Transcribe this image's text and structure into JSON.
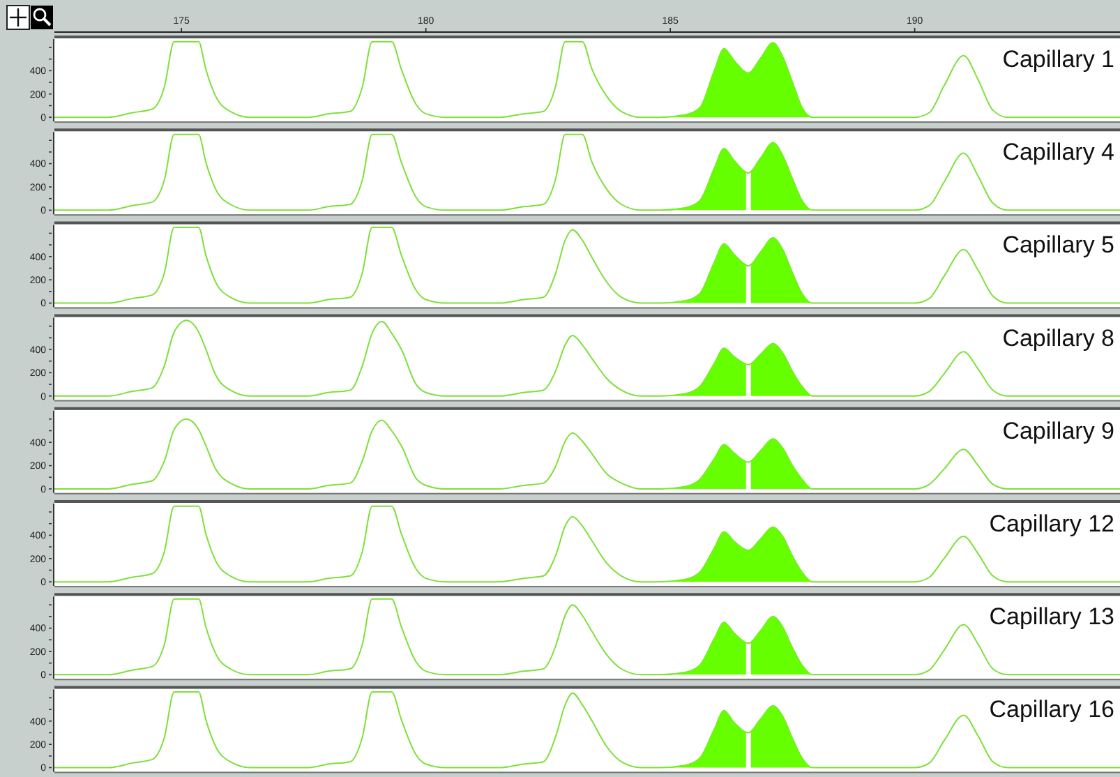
{
  "chart_data": [
    {
      "type": "line",
      "title": "Capillary 1",
      "xlim": [
        172.4,
        194.2
      ],
      "xticks": [
        175,
        180,
        185,
        190
      ],
      "ylim": [
        -35,
        660
      ],
      "yticks": [
        0,
        {
          "value": 100,
          "label": null
        },
        200,
        {
          "value": 300,
          "label": null
        },
        400,
        {
          "value": 500,
          "label": null
        },
        {
          "value": 600,
          "label": null
        }
      ],
      "x": [
        172.4,
        173.5,
        174.0,
        174.4,
        174.65,
        174.85,
        175.35,
        175.5,
        175.7,
        176.0,
        176.4,
        177.6,
        178.0,
        178.45,
        178.7,
        178.9,
        179.3,
        179.5,
        179.8,
        180.0,
        180.4,
        181.5,
        182.0,
        182.4,
        182.65,
        182.85,
        183.2,
        183.4,
        183.7,
        184.0,
        184.4,
        184.8,
        185.3,
        185.6,
        185.9,
        186.1,
        186.3,
        186.6,
        186.85,
        187.1,
        187.3,
        187.5,
        187.7,
        187.9,
        188.3,
        190.0,
        190.3,
        190.6,
        191.0,
        191.3,
        191.6,
        191.9,
        192.5,
        194.2
      ],
      "series": [
        {
          "type": "line",
          "color": "#7ee03a",
          "values": [
            0,
            0,
            40,
            70,
            260,
            650,
            650,
            410,
            180,
            50,
            0,
            0,
            30,
            50,
            260,
            650,
            650,
            410,
            110,
            30,
            0,
            0,
            30,
            50,
            260,
            650,
            650,
            410,
            180,
            50,
            0,
            0,
            20,
            80,
            400,
            590,
            490,
            380,
            510,
            640,
            520,
            300,
            80,
            0,
            0,
            0,
            40,
            270,
            530,
            320,
            60,
            0,
            0,
            0
          ]
        },
        {
          "type": "area",
          "color": "#66ff00",
          "x": [
            184.8,
            185.3,
            185.6,
            185.9,
            186.1,
            186.3,
            186.6,
            186.85,
            187.1,
            187.3,
            187.5,
            187.7,
            187.9
          ],
          "values": [
            0,
            20,
            80,
            400,
            590,
            490,
            380,
            510,
            640,
            520,
            300,
            80,
            0
          ]
        }
      ]
    },
    {
      "type": "line",
      "title": "Capillary 4",
      "xlim": [
        172.4,
        194.2
      ],
      "ylim": [
        -35,
        660
      ],
      "yticks": [
        0,
        {
          "value": 100,
          "label": null
        },
        200,
        {
          "value": 300,
          "label": null
        },
        400,
        {
          "value": 500,
          "label": null
        },
        {
          "value": 600,
          "label": null
        }
      ],
      "tick_labels": "y",
      "x": [
        172.4,
        173.5,
        174.0,
        174.4,
        174.65,
        174.85,
        175.35,
        175.5,
        175.7,
        176.0,
        176.4,
        177.6,
        178.0,
        178.45,
        178.7,
        178.9,
        179.3,
        179.5,
        179.8,
        180.0,
        180.4,
        181.5,
        182.0,
        182.4,
        182.65,
        182.85,
        183.2,
        183.4,
        183.7,
        184.0,
        184.4,
        184.8,
        185.3,
        185.6,
        185.9,
        186.1,
        186.3,
        186.6,
        186.85,
        187.1,
        187.3,
        187.5,
        187.7,
        187.9,
        188.3,
        190.0,
        190.3,
        190.6,
        191.0,
        191.3,
        191.6,
        191.9,
        192.5,
        194.2
      ],
      "series": [
        {
          "type": "line",
          "color": "#7ee03a",
          "values": [
            0,
            0,
            40,
            70,
            260,
            650,
            650,
            410,
            180,
            50,
            0,
            0,
            30,
            50,
            260,
            650,
            650,
            410,
            110,
            30,
            0,
            0,
            30,
            50,
            260,
            650,
            650,
            410,
            180,
            50,
            0,
            0,
            20,
            80,
            360,
            530,
            430,
            320,
            450,
            580,
            470,
            270,
            80,
            0,
            0,
            0,
            40,
            240,
            490,
            290,
            60,
            0,
            0,
            0
          ]
        },
        {
          "type": "area",
          "color": "#66ff00",
          "x": [
            184.8,
            185.3,
            185.6,
            185.9,
            186.1,
            186.3,
            186.55
          ],
          "values": [
            0,
            20,
            80,
            360,
            530,
            430,
            320
          ]
        },
        {
          "type": "area",
          "color": "#66ff00",
          "x": [
            186.65,
            186.85,
            187.1,
            187.3,
            187.5,
            187.7,
            187.9
          ],
          "values": [
            320,
            450,
            580,
            470,
            270,
            80,
            0
          ]
        }
      ]
    },
    {
      "type": "line",
      "title": "Capillary 5",
      "xlim": [
        172.4,
        194.2
      ],
      "ylim": [
        -35,
        660
      ],
      "yticks": [
        0,
        {
          "value": 100,
          "label": null
        },
        200,
        {
          "value": 300,
          "label": null
        },
        400,
        {
          "value": 500,
          "label": null
        },
        {
          "value": 600,
          "label": null
        }
      ],
      "tick_labels": "y",
      "x": [
        172.4,
        173.5,
        174.0,
        174.4,
        174.65,
        174.85,
        175.35,
        175.5,
        175.7,
        176.0,
        176.4,
        177.6,
        178.0,
        178.45,
        178.7,
        178.9,
        179.3,
        179.5,
        179.8,
        180.0,
        180.4,
        181.5,
        182.0,
        182.4,
        182.65,
        182.85,
        183.0,
        183.2,
        183.4,
        183.7,
        184.0,
        184.4,
        184.8,
        185.3,
        185.6,
        185.9,
        186.1,
        186.3,
        186.6,
        186.85,
        187.1,
        187.3,
        187.5,
        187.7,
        187.9,
        188.3,
        190.0,
        190.3,
        190.6,
        191.0,
        191.3,
        191.6,
        191.9,
        192.5,
        194.2
      ],
      "series": [
        {
          "type": "line",
          "color": "#7ee03a",
          "values": [
            0,
            0,
            40,
            70,
            260,
            650,
            650,
            410,
            180,
            50,
            0,
            0,
            30,
            50,
            260,
            650,
            650,
            410,
            110,
            30,
            0,
            0,
            30,
            50,
            250,
            540,
            630,
            540,
            390,
            180,
            50,
            0,
            0,
            20,
            80,
            350,
            510,
            420,
            320,
            440,
            560,
            460,
            260,
            80,
            0,
            0,
            0,
            40,
            230,
            460,
            280,
            60,
            0,
            0,
            0
          ]
        },
        {
          "type": "area",
          "color": "#66ff00",
          "x": [
            184.8,
            185.3,
            185.6,
            185.9,
            186.1,
            186.3,
            186.55
          ],
          "values": [
            0,
            20,
            80,
            350,
            510,
            420,
            320
          ]
        },
        {
          "type": "area",
          "color": "#66ff00",
          "x": [
            186.65,
            186.85,
            187.1,
            187.3,
            187.5,
            187.7,
            187.9
          ],
          "values": [
            320,
            440,
            560,
            460,
            260,
            80,
            0
          ]
        }
      ]
    },
    {
      "type": "line",
      "title": "Capillary 8",
      "xlim": [
        172.4,
        194.2
      ],
      "ylim": [
        -35,
        660
      ],
      "yticks": [
        0,
        {
          "value": 100,
          "label": null
        },
        200,
        {
          "value": 300,
          "label": null
        },
        400,
        {
          "value": 500,
          "label": null
        },
        {
          "value": 600,
          "label": null
        }
      ],
      "tick_labels": "y",
      "x": [
        172.4,
        173.5,
        174.0,
        174.4,
        174.65,
        174.85,
        175.1,
        175.35,
        175.5,
        175.7,
        176.0,
        176.4,
        177.6,
        178.0,
        178.45,
        178.7,
        178.9,
        179.1,
        179.3,
        179.5,
        179.8,
        180.0,
        180.4,
        181.5,
        182.0,
        182.4,
        182.65,
        182.85,
        183.0,
        183.2,
        183.4,
        183.7,
        184.0,
        184.4,
        184.8,
        185.3,
        185.6,
        185.9,
        186.1,
        186.3,
        186.6,
        186.85,
        187.1,
        187.3,
        187.5,
        187.7,
        187.9,
        188.3,
        190.0,
        190.3,
        190.6,
        191.0,
        191.3,
        191.6,
        191.9,
        192.5,
        194.2
      ],
      "series": [
        {
          "type": "line",
          "color": "#7ee03a",
          "values": [
            0,
            0,
            40,
            70,
            260,
            550,
            650,
            550,
            400,
            180,
            50,
            0,
            0,
            30,
            50,
            260,
            540,
            640,
            540,
            400,
            100,
            30,
            0,
            0,
            30,
            50,
            210,
            440,
            520,
            440,
            320,
            150,
            50,
            0,
            0,
            20,
            80,
            280,
            410,
            340,
            270,
            360,
            450,
            370,
            210,
            80,
            0,
            0,
            0,
            40,
            190,
            380,
            230,
            50,
            0,
            0,
            0
          ]
        },
        {
          "type": "area",
          "color": "#66ff00",
          "x": [
            184.8,
            185.3,
            185.6,
            185.9,
            186.1,
            186.3,
            186.55
          ],
          "values": [
            0,
            20,
            80,
            280,
            410,
            340,
            270
          ]
        },
        {
          "type": "area",
          "color": "#66ff00",
          "x": [
            186.65,
            186.85,
            187.1,
            187.3,
            187.5,
            187.7,
            187.9
          ],
          "values": [
            270,
            360,
            450,
            370,
            210,
            80,
            0
          ]
        }
      ]
    },
    {
      "type": "line",
      "title": "Capillary 9",
      "xlim": [
        172.4,
        194.2
      ],
      "ylim": [
        -35,
        660
      ],
      "yticks": [
        0,
        {
          "value": 100,
          "label": null
        },
        200,
        {
          "value": 300,
          "label": null
        },
        400,
        {
          "value": 500,
          "label": null
        },
        {
          "value": 600,
          "label": null
        }
      ],
      "tick_labels": "y",
      "x": [
        172.4,
        173.5,
        174.0,
        174.4,
        174.65,
        174.85,
        175.1,
        175.35,
        175.5,
        175.7,
        176.0,
        176.4,
        177.6,
        178.0,
        178.45,
        178.7,
        178.9,
        179.1,
        179.3,
        179.5,
        179.8,
        180.0,
        180.4,
        181.5,
        182.0,
        182.4,
        182.65,
        182.85,
        183.0,
        183.2,
        183.4,
        183.7,
        184.0,
        184.4,
        184.8,
        185.3,
        185.6,
        185.9,
        186.1,
        186.3,
        186.6,
        186.85,
        187.1,
        187.3,
        187.5,
        187.7,
        187.9,
        188.3,
        190.0,
        190.3,
        190.6,
        191.0,
        191.3,
        191.6,
        191.9,
        192.5,
        194.2
      ],
      "series": [
        {
          "type": "line",
          "color": "#7ee03a",
          "values": [
            0,
            0,
            40,
            70,
            240,
            510,
            600,
            510,
            370,
            170,
            50,
            0,
            0,
            30,
            50,
            240,
            500,
            590,
            500,
            370,
            90,
            30,
            0,
            0,
            30,
            50,
            190,
            410,
            480,
            410,
            300,
            130,
            50,
            0,
            0,
            20,
            80,
            260,
            380,
            310,
            230,
            330,
            430,
            350,
            200,
            80,
            0,
            0,
            0,
            40,
            170,
            340,
            200,
            40,
            0,
            0,
            0
          ]
        },
        {
          "type": "area",
          "color": "#66ff00",
          "x": [
            184.8,
            185.3,
            185.6,
            185.9,
            186.1,
            186.3,
            186.55
          ],
          "values": [
            0,
            20,
            80,
            260,
            380,
            310,
            230
          ]
        },
        {
          "type": "area",
          "color": "#66ff00",
          "x": [
            186.65,
            186.85,
            187.1,
            187.3,
            187.5,
            187.7,
            187.9
          ],
          "values": [
            230,
            330,
            430,
            350,
            200,
            80,
            0
          ]
        }
      ]
    },
    {
      "type": "line",
      "title": "Capillary 12",
      "xlim": [
        172.4,
        194.2
      ],
      "ylim": [
        -35,
        660
      ],
      "yticks": [
        0,
        {
          "value": 100,
          "label": null
        },
        200,
        {
          "value": 300,
          "label": null
        },
        400,
        {
          "value": 500,
          "label": null
        },
        {
          "value": 600,
          "label": null
        }
      ],
      "tick_labels": "y",
      "x": [
        172.4,
        173.5,
        174.0,
        174.4,
        174.65,
        174.85,
        175.35,
        175.5,
        175.7,
        176.0,
        176.4,
        177.6,
        178.0,
        178.45,
        178.7,
        178.9,
        179.3,
        179.5,
        179.8,
        180.0,
        180.4,
        181.5,
        182.0,
        182.4,
        182.65,
        182.85,
        183.0,
        183.2,
        183.4,
        183.7,
        184.0,
        184.4,
        184.8,
        185.3,
        185.6,
        185.9,
        186.1,
        186.3,
        186.6,
        186.85,
        187.1,
        187.3,
        187.5,
        187.7,
        187.9,
        188.3,
        190.0,
        190.3,
        190.6,
        191.0,
        191.3,
        191.6,
        191.9,
        192.5,
        194.2
      ],
      "series": [
        {
          "type": "line",
          "color": "#7ee03a",
          "values": [
            0,
            0,
            40,
            70,
            260,
            650,
            650,
            410,
            180,
            50,
            0,
            0,
            30,
            50,
            260,
            650,
            650,
            410,
            110,
            30,
            0,
            0,
            30,
            50,
            220,
            480,
            560,
            480,
            350,
            160,
            50,
            0,
            0,
            20,
            80,
            290,
            430,
            350,
            270,
            370,
            470,
            390,
            220,
            80,
            0,
            0,
            0,
            40,
            200,
            390,
            240,
            50,
            0,
            0,
            0
          ]
        },
        {
          "type": "area",
          "color": "#66ff00",
          "x": [
            184.8,
            185.3,
            185.6,
            185.9,
            186.1,
            186.3,
            186.6,
            186.85,
            187.1,
            187.3,
            187.5,
            187.7,
            187.9
          ],
          "values": [
            0,
            20,
            80,
            290,
            430,
            350,
            270,
            370,
            470,
            390,
            220,
            80,
            0
          ]
        }
      ]
    },
    {
      "type": "line",
      "title": "Capillary 13",
      "xlim": [
        172.4,
        194.2
      ],
      "ylim": [
        -35,
        660
      ],
      "yticks": [
        0,
        {
          "value": 100,
          "label": null
        },
        200,
        {
          "value": 300,
          "label": null
        },
        400,
        {
          "value": 500,
          "label": null
        },
        {
          "value": 600,
          "label": null
        }
      ],
      "tick_labels": "y",
      "x": [
        172.4,
        173.5,
        174.0,
        174.4,
        174.65,
        174.85,
        175.35,
        175.5,
        175.7,
        176.0,
        176.4,
        177.6,
        178.0,
        178.45,
        178.7,
        178.9,
        179.3,
        179.5,
        179.8,
        180.0,
        180.4,
        181.5,
        182.0,
        182.4,
        182.65,
        182.85,
        183.0,
        183.2,
        183.4,
        183.7,
        184.0,
        184.4,
        184.8,
        185.3,
        185.6,
        185.9,
        186.1,
        186.3,
        186.6,
        186.85,
        187.1,
        187.3,
        187.5,
        187.7,
        187.9,
        188.3,
        190.0,
        190.3,
        190.6,
        191.0,
        191.3,
        191.6,
        191.9,
        192.5,
        194.2
      ],
      "series": [
        {
          "type": "line",
          "color": "#7ee03a",
          "values": [
            0,
            0,
            40,
            70,
            260,
            650,
            650,
            410,
            180,
            50,
            0,
            0,
            30,
            50,
            260,
            650,
            650,
            410,
            110,
            30,
            0,
            0,
            30,
            50,
            240,
            510,
            600,
            510,
            370,
            170,
            50,
            0,
            0,
            20,
            80,
            310,
            450,
            360,
            270,
            380,
            500,
            410,
            230,
            80,
            0,
            0,
            0,
            40,
            210,
            430,
            260,
            50,
            0,
            0,
            0
          ]
        },
        {
          "type": "area",
          "color": "#66ff00",
          "x": [
            184.8,
            185.3,
            185.6,
            185.9,
            186.1,
            186.3,
            186.55
          ],
          "values": [
            0,
            20,
            80,
            310,
            450,
            360,
            270
          ]
        },
        {
          "type": "area",
          "color": "#66ff00",
          "x": [
            186.65,
            186.85,
            187.1,
            187.3,
            187.5,
            187.7,
            187.9
          ],
          "values": [
            270,
            380,
            500,
            410,
            230,
            80,
            0
          ]
        }
      ]
    },
    {
      "type": "line",
      "title": "Capillary 16",
      "xlim": [
        172.4,
        194.2
      ],
      "ylim": [
        -35,
        660
      ],
      "yticks": [
        0,
        {
          "value": 100,
          "label": null
        },
        200,
        {
          "value": 300,
          "label": null
        },
        400,
        {
          "value": 500,
          "label": null
        },
        {
          "value": 600,
          "label": null
        }
      ],
      "tick_labels": "y",
      "x": [
        172.4,
        173.5,
        174.0,
        174.4,
        174.65,
        174.85,
        175.35,
        175.5,
        175.7,
        176.0,
        176.4,
        177.6,
        178.0,
        178.45,
        178.7,
        178.9,
        179.3,
        179.5,
        179.8,
        180.0,
        180.4,
        181.5,
        182.0,
        182.4,
        182.65,
        182.85,
        183.0,
        183.2,
        183.4,
        183.7,
        184.0,
        184.4,
        184.8,
        185.3,
        185.6,
        185.9,
        186.1,
        186.3,
        186.6,
        186.85,
        187.1,
        187.3,
        187.5,
        187.7,
        187.9,
        188.3,
        190.0,
        190.3,
        190.6,
        191.0,
        191.3,
        191.6,
        191.9,
        192.5,
        194.2
      ],
      "series": [
        {
          "type": "line",
          "color": "#7ee03a",
          "values": [
            0,
            0,
            40,
            70,
            260,
            650,
            650,
            410,
            180,
            50,
            0,
            0,
            30,
            50,
            260,
            650,
            650,
            410,
            110,
            30,
            0,
            0,
            30,
            50,
            260,
            540,
            640,
            540,
            400,
            180,
            50,
            0,
            0,
            20,
            80,
            330,
            490,
            390,
            300,
            420,
            530,
            440,
            250,
            80,
            0,
            0,
            0,
            40,
            230,
            450,
            270,
            50,
            0,
            0,
            0
          ]
        },
        {
          "type": "area",
          "color": "#66ff00",
          "x": [
            184.8,
            185.3,
            185.6,
            185.9,
            186.1,
            186.3,
            186.55
          ],
          "values": [
            0,
            20,
            80,
            330,
            490,
            390,
            300
          ]
        },
        {
          "type": "area",
          "color": "#66ff00",
          "x": [
            186.65,
            186.85,
            187.1,
            187.3,
            187.5,
            187.7,
            187.9
          ],
          "values": [
            300,
            420,
            530,
            440,
            250,
            80,
            0
          ]
        }
      ]
    }
  ]
}
